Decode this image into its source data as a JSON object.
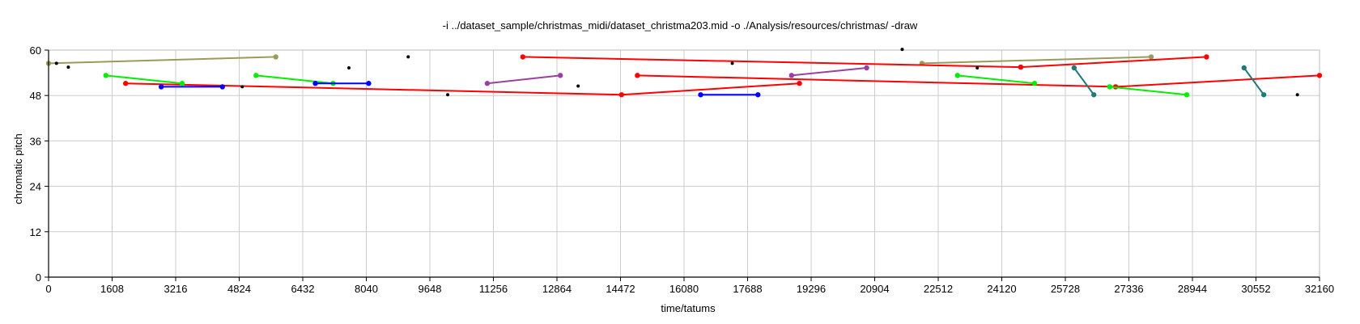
{
  "chart_data": {
    "type": "scatter",
    "title": "-i ../dataset_sample/christmas_midi/dataset_christma203.mid -o ./Analysis/resources/christmas/ -draw",
    "xlabel": "time/tatums",
    "ylabel": "chromatic pitch",
    "xlim": [
      0,
      32160
    ],
    "ylim": [
      0,
      60
    ],
    "xticks": [
      "0",
      "1608",
      "3216",
      "4824",
      "6432",
      "8040",
      "9648",
      "11256",
      "12864",
      "14472",
      "16080",
      "17688",
      "19296",
      "20904",
      "22512",
      "24120",
      "25728",
      "27336",
      "28944",
      "30552",
      "32160"
    ],
    "yticks": [
      "0",
      "12",
      "24",
      "36",
      "48",
      "60"
    ],
    "grid": true,
    "series": [
      {
        "color": "#9a9a5a",
        "points": [
          [
            0,
            56.5
          ],
          [
            5750,
            58.2
          ]
        ]
      },
      {
        "color": "#9a9a5a",
        "points": [
          [
            22100,
            56.5
          ],
          [
            27900,
            58.2
          ]
        ]
      },
      {
        "color": "#ff0000",
        "points": [
          [
            1950,
            51.2
          ],
          [
            14500,
            48.2
          ],
          [
            19000,
            51.2
          ]
        ]
      },
      {
        "color": "#ff0000",
        "points": [
          [
            12000,
            58.2
          ],
          [
            24600,
            55.5
          ],
          [
            29300,
            58.2
          ]
        ]
      },
      {
        "color": "#ff0000",
        "points": [
          [
            14900,
            53.3
          ],
          [
            27000,
            50.3
          ],
          [
            32160,
            53.3
          ]
        ]
      },
      {
        "color": "#00ee00",
        "points": [
          [
            1450,
            53.3
          ],
          [
            3380,
            51.2
          ]
        ]
      },
      {
        "color": "#00ee00",
        "points": [
          [
            5250,
            53.3
          ],
          [
            7200,
            51.2
          ]
        ]
      },
      {
        "color": "#00ee00",
        "points": [
          [
            23000,
            53.3
          ],
          [
            24950,
            51.2
          ]
        ]
      },
      {
        "color": "#00ee00",
        "points": [
          [
            26850,
            50.3
          ],
          [
            28800,
            48.2
          ]
        ]
      },
      {
        "color": "#0000ff",
        "points": [
          [
            2850,
            50.3
          ],
          [
            4400,
            50.3
          ]
        ]
      },
      {
        "color": "#0000ff",
        "points": [
          [
            6750,
            51.2
          ],
          [
            8100,
            51.2
          ]
        ]
      },
      {
        "color": "#0000ff",
        "points": [
          [
            16500,
            48.2
          ],
          [
            17950,
            48.2
          ]
        ]
      },
      {
        "color": "#9a40a0",
        "points": [
          [
            11100,
            51.2
          ],
          [
            12950,
            53.3
          ]
        ]
      },
      {
        "color": "#9a40a0",
        "points": [
          [
            18800,
            53.3
          ],
          [
            20700,
            55.3
          ]
        ]
      },
      {
        "color": "#207a7a",
        "points": [
          [
            25950,
            55.3
          ],
          [
            26450,
            48.2
          ]
        ]
      },
      {
        "color": "#207a7a",
        "points": [
          [
            30250,
            55.3
          ],
          [
            30750,
            48.2
          ]
        ]
      }
    ],
    "single_notes": {
      "color": "#000000",
      "points": [
        [
          200,
          56.5
        ],
        [
          500,
          55.5
        ],
        [
          4900,
          50.3
        ],
        [
          7600,
          55.3
        ],
        [
          9100,
          58.2
        ],
        [
          10100,
          48.2
        ],
        [
          13400,
          50.5
        ],
        [
          17300,
          56.5
        ],
        [
          21600,
          60.2
        ],
        [
          23500,
          55.3
        ],
        [
          31600,
          48.2
        ]
      ]
    }
  }
}
